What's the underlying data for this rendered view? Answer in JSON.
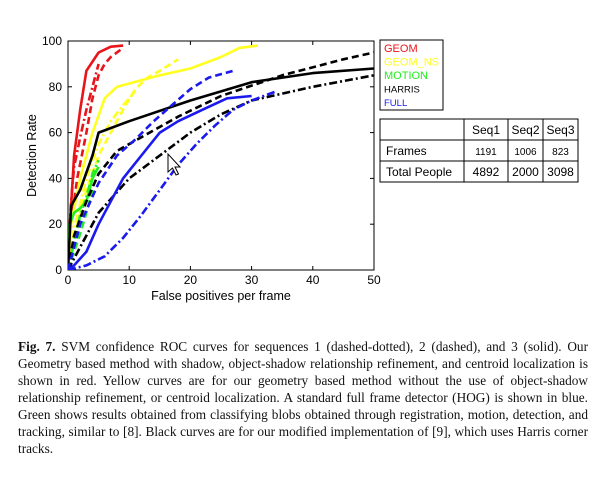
{
  "figure": {
    "caption_label": "Fig. 7.",
    "caption_text": "SVM confidence ROC curves for sequences 1 (dashed-dotted), 2 (dashed), and 3 (solid). Our Geometry based method with shadow, object-shadow relationship refinement, and centroid localization is shown in red. Yellow curves are for our geometry based method without the use of object-shadow relationship refinement, or centroid localization. A standard full frame detector (HOG) is shown in blue. Green shows results obtained from classifying blobs obtained through registration, motion, detection, and tracking, similar to [8]. Black curves are for our modified implementation of [9], which uses Harris corner tracks."
  },
  "chart_data": {
    "type": "line",
    "title": "",
    "xlabel": "False positives per frame",
    "ylabel": "Detection Rate",
    "xlim": [
      0,
      50
    ],
    "ylim": [
      0,
      100
    ],
    "xticks": [
      0,
      10,
      20,
      30,
      40,
      50
    ],
    "yticks": [
      0,
      20,
      40,
      60,
      80,
      100
    ],
    "grid": false,
    "legend_position": "right-top outside plot",
    "series": [
      {
        "name": "GEOM",
        "color": "#e8141a",
        "style": "solid",
        "points": [
          [
            0,
            2
          ],
          [
            0.5,
            28
          ],
          [
            1,
            50
          ],
          [
            2,
            70
          ],
          [
            3,
            87
          ],
          [
            5,
            95
          ],
          [
            7,
            97.5
          ],
          [
            9,
            98
          ]
        ]
      },
      {
        "name": "GEOM",
        "color": "#e8141a",
        "style": "dashed",
        "points": [
          [
            0,
            2
          ],
          [
            0.5,
            20
          ],
          [
            1.5,
            40
          ],
          [
            3,
            60
          ],
          [
            4,
            75
          ],
          [
            5,
            85
          ],
          [
            6,
            90
          ],
          [
            7,
            93
          ],
          [
            9,
            97
          ]
        ]
      },
      {
        "name": "GEOM",
        "color": "#e8141a",
        "style": "dashdot",
        "points": [
          [
            0,
            5
          ],
          [
            0.5,
            30
          ],
          [
            1,
            45
          ],
          [
            2,
            58
          ],
          [
            3,
            70
          ],
          [
            4,
            80
          ],
          [
            5,
            90
          ]
        ]
      },
      {
        "name": "GEOM_NS",
        "color": "#ffff22",
        "style": "solid",
        "points": [
          [
            0,
            0
          ],
          [
            0.5,
            20
          ],
          [
            2,
            40
          ],
          [
            4,
            60
          ],
          [
            6,
            75
          ],
          [
            8,
            80
          ],
          [
            15,
            85
          ],
          [
            20,
            88
          ],
          [
            25,
            93
          ],
          [
            28,
            97
          ],
          [
            31,
            98
          ]
        ]
      },
      {
        "name": "GEOM_NS",
        "color": "#ffff22",
        "style": "dashed",
        "points": [
          [
            0,
            0
          ],
          [
            1,
            15
          ],
          [
            3,
            35
          ],
          [
            5,
            50
          ],
          [
            7,
            60
          ],
          [
            9,
            70
          ],
          [
            11,
            79
          ],
          [
            13,
            84
          ],
          [
            15,
            87
          ],
          [
            18,
            92
          ]
        ]
      },
      {
        "name": "GEOM_NS",
        "color": "#ffff22",
        "style": "dashdot",
        "points": [
          [
            0,
            0
          ],
          [
            1,
            18
          ],
          [
            3,
            40
          ],
          [
            5,
            55
          ],
          [
            7,
            65
          ],
          [
            9,
            72
          ],
          [
            11,
            78
          ]
        ]
      },
      {
        "name": "MOTION",
        "color": "#22ee22",
        "style": "solid",
        "points": [
          [
            0,
            0
          ],
          [
            0.3,
            20
          ],
          [
            1,
            25
          ],
          [
            2,
            27
          ],
          [
            3,
            30
          ],
          [
            4,
            40
          ],
          [
            5,
            45
          ]
        ]
      },
      {
        "name": "MOTION",
        "color": "#22ee22",
        "style": "dashed",
        "points": [
          [
            0,
            0
          ],
          [
            1,
            8
          ],
          [
            2,
            16
          ],
          [
            3,
            25
          ],
          [
            4,
            35
          ]
        ]
      },
      {
        "name": "MOTION",
        "color": "#22ee22",
        "style": "dashdot",
        "points": [
          [
            0,
            0
          ],
          [
            1,
            12
          ],
          [
            2,
            24
          ],
          [
            3,
            32
          ],
          [
            4,
            42
          ],
          [
            5,
            48
          ]
        ]
      },
      {
        "name": "HARRIS",
        "color": "#000000",
        "style": "solid",
        "points": [
          [
            0,
            0
          ],
          [
            0.5,
            28
          ],
          [
            2,
            35
          ],
          [
            4,
            50
          ],
          [
            5,
            60
          ],
          [
            10,
            65
          ],
          [
            20,
            74
          ],
          [
            30,
            82
          ],
          [
            40,
            86
          ],
          [
            50,
            88
          ]
        ]
      },
      {
        "name": "HARRIS",
        "color": "#000000",
        "style": "dashed",
        "points": [
          [
            0,
            0
          ],
          [
            1,
            15
          ],
          [
            3,
            30
          ],
          [
            5,
            42
          ],
          [
            8,
            52
          ],
          [
            12,
            58
          ],
          [
            18,
            67
          ],
          [
            25,
            76
          ],
          [
            35,
            85
          ],
          [
            45,
            92
          ],
          [
            50,
            95
          ]
        ]
      },
      {
        "name": "HARRIS",
        "color": "#000000",
        "style": "dashdot",
        "points": [
          [
            0,
            0
          ],
          [
            2,
            10
          ],
          [
            5,
            25
          ],
          [
            10,
            40
          ],
          [
            15,
            50
          ],
          [
            20,
            60
          ],
          [
            25,
            68
          ],
          [
            30,
            74
          ],
          [
            40,
            80
          ],
          [
            50,
            85
          ]
        ]
      },
      {
        "name": "FULL",
        "color": "#1a1aee",
        "style": "solid",
        "points": [
          [
            0,
            0
          ],
          [
            1,
            2
          ],
          [
            3,
            8
          ],
          [
            5,
            20
          ],
          [
            7,
            30
          ],
          [
            9,
            40
          ],
          [
            12,
            50
          ],
          [
            15,
            60
          ],
          [
            18,
            65
          ],
          [
            22,
            70
          ],
          [
            26,
            75
          ],
          [
            30,
            76
          ]
        ]
      },
      {
        "name": "FULL",
        "color": "#1a1aee",
        "style": "dashed",
        "points": [
          [
            0,
            0
          ],
          [
            2,
            20
          ],
          [
            5,
            38
          ],
          [
            8,
            50
          ],
          [
            11,
            57
          ],
          [
            14,
            65
          ],
          [
            17,
            72
          ],
          [
            20,
            79
          ],
          [
            23,
            84
          ],
          [
            27,
            87
          ]
        ]
      },
      {
        "name": "FULL",
        "color": "#1a1aee",
        "style": "dashdot",
        "points": [
          [
            0,
            0
          ],
          [
            3,
            2
          ],
          [
            6,
            6
          ],
          [
            9,
            14
          ],
          [
            12,
            24
          ],
          [
            15,
            35
          ],
          [
            18,
            46
          ],
          [
            21,
            55
          ],
          [
            24,
            63
          ],
          [
            27,
            70
          ],
          [
            30,
            74
          ],
          [
            34,
            78
          ]
        ]
      }
    ],
    "legend": [
      {
        "label": "GEOM",
        "color": "#e8141a"
      },
      {
        "label": "GEOM_NS",
        "color": "#ffff22"
      },
      {
        "label": "MOTION",
        "color": "#22ee22"
      },
      {
        "label": "HARRIS",
        "color": "#000000"
      },
      {
        "label": "FULL",
        "color": "#1a1aee"
      }
    ]
  },
  "table": {
    "columns": [
      "",
      "Seq1",
      "Seq2",
      "Seq3"
    ],
    "rows": [
      {
        "label": "Frames",
        "values": [
          "1191",
          "1006",
          "823"
        ]
      },
      {
        "label": "Total People",
        "values": [
          "4892",
          "2000",
          "3098"
        ]
      }
    ]
  }
}
